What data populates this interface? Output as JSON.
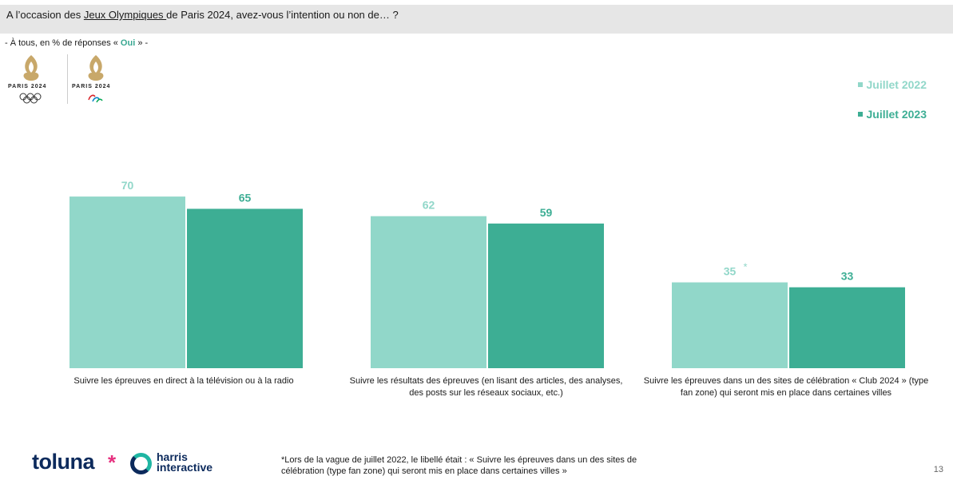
{
  "header": {
    "question_before": "A l’occasion des ",
    "question_link": "Jeux Olympiques ",
    "question_after": "de Paris 2024, avez-vous l’intention ou non de… ?"
  },
  "subtitle": {
    "before": "- À tous, en % de réponses « ",
    "highlight": "Oui",
    "after": " » -"
  },
  "logos": {
    "left_text": "PARIS 2024",
    "right_text": "PARIS 2024"
  },
  "colors": {
    "series_2022": "#91d7c9",
    "series_2023": "#3dae94",
    "header_bg": "#e6e6e6",
    "brand_navy": "#0c2a5c",
    "brand_pink": "#e6317f",
    "brand_teal": "#1fb6a3"
  },
  "chart_data": {
    "type": "bar",
    "categories": [
      "Suivre les épreuves en direct à la télévision ou à la radio",
      "Suivre les résultats des épreuves (en lisant des articles, des analyses, des posts sur les réseaux sociaux, etc.)",
      "Suivre les épreuves dans un des sites de célébration « Club 2024 » (type fan zone) qui seront mis en place dans certaines villes"
    ],
    "series": [
      {
        "name": "Juillet 2022",
        "values": [
          70,
          62,
          35
        ],
        "labels": [
          "70",
          "62",
          "35"
        ],
        "color": "#91d7c9"
      },
      {
        "name": "Juillet 2023",
        "values": [
          65,
          59,
          33
        ],
        "labels": [
          "65",
          "59",
          "33"
        ],
        "color": "#3dae94"
      }
    ],
    "annotations": [
      {
        "series": 0,
        "index": 2,
        "text": "*"
      }
    ],
    "ylim": [
      0,
      100
    ],
    "grid": false,
    "legend_position": "top-right"
  },
  "footer": {
    "brand_main": "toluna",
    "brand_star": "*",
    "brand_secondary_line1": "harris",
    "brand_secondary_line2": "interactive",
    "footnote_line1": "*Lors de la vague de juillet 2022, le libellé était : «  Suivre les épreuves dans un des sites de",
    "footnote_line2": "célébration (type fan zone) qui seront mis en place dans certaines villes »",
    "page_number": "13"
  }
}
